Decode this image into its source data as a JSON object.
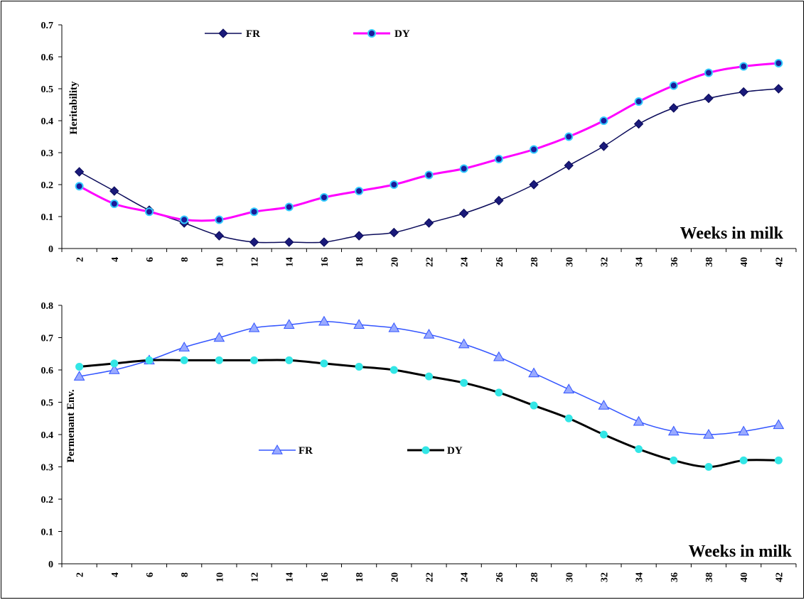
{
  "chart_data": [
    {
      "type": "line",
      "ylabel": "Heritability",
      "xlabel": "Weeks in milk",
      "x": [
        2,
        4,
        6,
        8,
        10,
        12,
        14,
        16,
        18,
        20,
        22,
        24,
        26,
        28,
        30,
        32,
        34,
        36,
        38,
        40,
        42
      ],
      "ylim": [
        0,
        0.7
      ],
      "yticks": [
        "0",
        "0.1",
        "0.2",
        "0.3",
        "0.4",
        "0.5",
        "0.6",
        "0.7"
      ],
      "series": [
        {
          "name": "FR",
          "color": "#0a0a5a",
          "marker": "diamond",
          "marker_fill": "#1a1a7a",
          "values": [
            0.24,
            0.18,
            0.12,
            0.08,
            0.04,
            0.02,
            0.02,
            0.02,
            0.04,
            0.05,
            0.08,
            0.11,
            0.15,
            0.2,
            0.26,
            0.32,
            0.39,
            0.44,
            0.47,
            0.49,
            0.5
          ]
        },
        {
          "name": "DY",
          "color": "#ff00ff",
          "marker": "circle",
          "marker_fill": "#1a1a9a",
          "marker_edge": "#33ccff",
          "values": [
            0.195,
            0.14,
            0.115,
            0.09,
            0.09,
            0.115,
            0.13,
            0.16,
            0.18,
            0.2,
            0.23,
            0.25,
            0.28,
            0.31,
            0.35,
            0.4,
            0.46,
            0.51,
            0.55,
            0.57,
            0.58
          ]
        }
      ]
    },
    {
      "type": "line",
      "ylabel": "Permenant Env.",
      "xlabel": "Weeks in milk",
      "x": [
        2,
        4,
        6,
        8,
        10,
        12,
        14,
        16,
        18,
        20,
        22,
        24,
        26,
        28,
        30,
        32,
        34,
        36,
        38,
        40,
        42
      ],
      "ylim": [
        0,
        0.8
      ],
      "yticks": [
        "0",
        "0.1",
        "0.2",
        "0.3",
        "0.4",
        "0.5",
        "0.6",
        "0.7",
        "0.8"
      ],
      "series": [
        {
          "name": "FR",
          "color": "#3355ff",
          "marker": "triangle",
          "marker_fill": "#99aaff",
          "values": [
            0.58,
            0.6,
            0.63,
            0.67,
            0.7,
            0.73,
            0.74,
            0.75,
            0.74,
            0.73,
            0.71,
            0.68,
            0.64,
            0.59,
            0.54,
            0.49,
            0.44,
            0.41,
            0.4,
            0.41,
            0.43
          ]
        },
        {
          "name": "DY",
          "color": "#000000",
          "marker": "circle",
          "marker_fill": "#33e6e6",
          "values": [
            0.61,
            0.62,
            0.63,
            0.63,
            0.63,
            0.63,
            0.63,
            0.62,
            0.61,
            0.6,
            0.58,
            0.56,
            0.53,
            0.49,
            0.45,
            0.4,
            0.355,
            0.32,
            0.3,
            0.32,
            0.32
          ]
        }
      ]
    }
  ]
}
